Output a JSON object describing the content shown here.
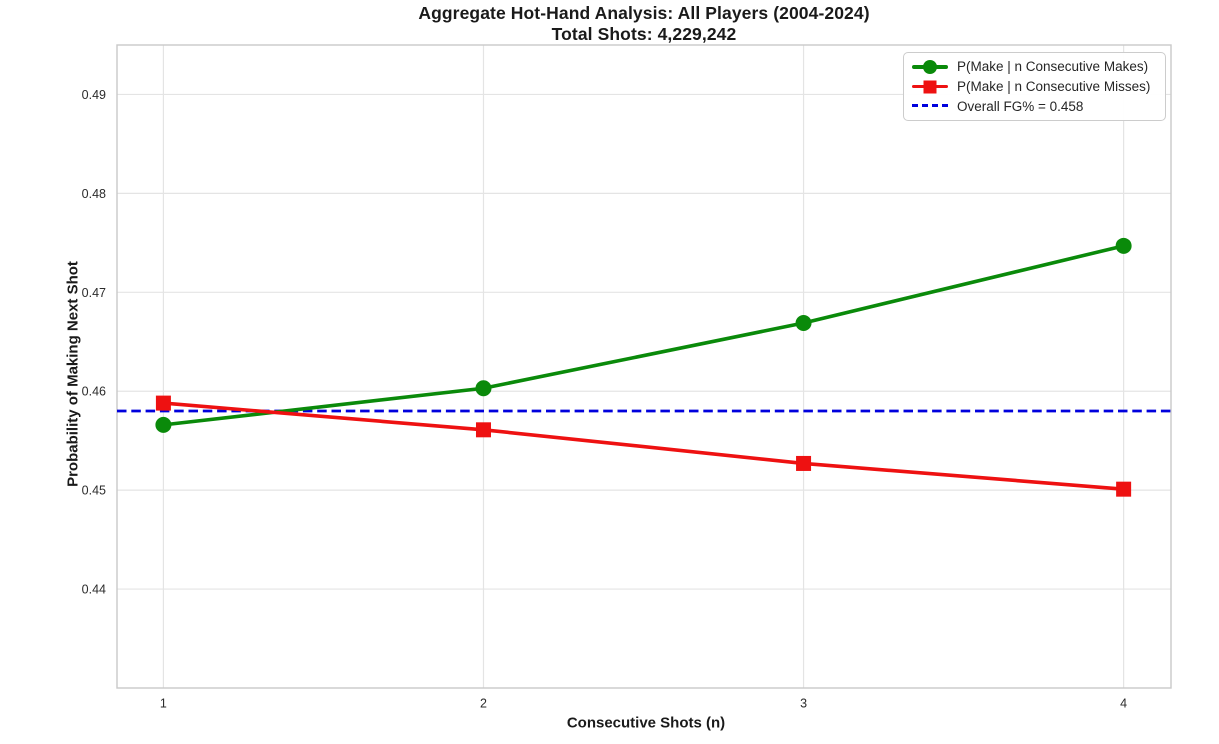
{
  "chart_data": {
    "type": "line",
    "title": "Aggregate Hot-Hand Analysis: All Players (2004-2024)",
    "subtitle": "Total Shots: 4,229,242",
    "xlabel": "Consecutive Shots (n)",
    "ylabel": "Probability of Making Next Shot",
    "x": [
      1,
      2,
      3,
      4
    ],
    "series": [
      {
        "name": "P(Make | n Consecutive Makes)",
        "color": "#0a8a0a",
        "marker": "circle",
        "values": [
          0.4566,
          0.4603,
          0.4669,
          0.4747
        ]
      },
      {
        "name": "P(Make | n Consecutive Misses)",
        "color": "#ee1111",
        "marker": "square",
        "values": [
          0.4588,
          0.4561,
          0.4527,
          0.4501
        ]
      }
    ],
    "reference_line": {
      "label": "Overall FG% = 0.458",
      "value": 0.458,
      "color": "#0000dd",
      "style": "dashed"
    },
    "xlim": [
      0.855,
      4.148
    ],
    "ylim": [
      0.43,
      0.495
    ],
    "xticks": [
      "1",
      "2",
      "3",
      "4"
    ],
    "yticks": [
      "0.44",
      "0.45",
      "0.46",
      "0.47",
      "0.48",
      "0.49"
    ],
    "grid": true,
    "grid_color": "#e4e4e4",
    "spine_color": "#c9c9c9",
    "tick_label_color": "#2b2b2b",
    "legend_position": "upper right"
  }
}
